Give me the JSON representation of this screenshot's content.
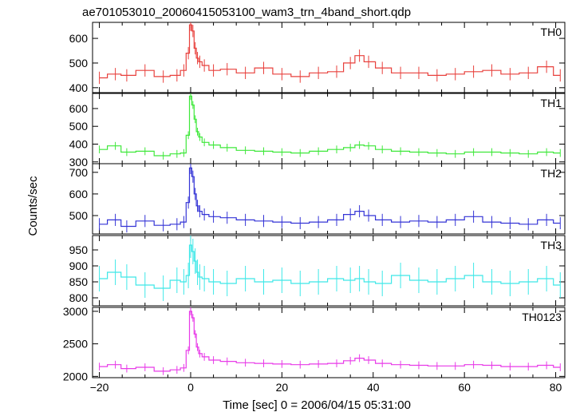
{
  "chart_data": {
    "type": "line",
    "title": "ae701053010_20060415053100_wam3_trn_4band_short.qdp",
    "xlabel": "Time [sec] 0 = 2006/04/15 05:31:00",
    "ylabel": "Counts/sec",
    "xlim": [
      -21.5,
      82
    ],
    "x_ticks": [
      -20,
      0,
      20,
      40,
      60,
      80
    ],
    "panels": [
      {
        "name": "TH0",
        "color": "#e8403c",
        "ylim": [
          380,
          665
        ],
        "y_ticks": [
          400,
          500,
          600
        ],
        "x": [
          -20,
          -16.5,
          -14,
          -10,
          -6,
          -3,
          -1.5,
          -0.5,
          0,
          0.5,
          1,
          1.5,
          2,
          3,
          5,
          8,
          12,
          16,
          20,
          24,
          28,
          32,
          35,
          37,
          39,
          42,
          46,
          50,
          54,
          58,
          62,
          66,
          70,
          74,
          78,
          81
        ],
        "y": [
          440,
          455,
          450,
          470,
          445,
          450,
          470,
          540,
          655,
          630,
          560,
          520,
          505,
          490,
          470,
          475,
          460,
          480,
          455,
          445,
          460,
          465,
          500,
          530,
          505,
          480,
          460,
          460,
          450,
          455,
          465,
          470,
          455,
          460,
          485,
          450
        ],
        "err": 25
      },
      {
        "name": "TH1",
        "color": "#3ee83a",
        "ylim": [
          290,
          685
        ],
        "y_ticks": [
          300,
          400,
          500,
          600
        ],
        "x": [
          -20,
          -16.5,
          -14,
          -10,
          -6,
          -3,
          -1.5,
          -0.5,
          0,
          0.5,
          1,
          1.5,
          2,
          3,
          5,
          8,
          12,
          16,
          20,
          24,
          28,
          32,
          35,
          37,
          39,
          42,
          46,
          50,
          54,
          58,
          62,
          66,
          70,
          74,
          78,
          81
        ],
        "y": [
          370,
          390,
          355,
          360,
          335,
          345,
          350,
          450,
          670,
          620,
          540,
          470,
          440,
          410,
          395,
          380,
          365,
          360,
          355,
          350,
          360,
          370,
          380,
          395,
          390,
          370,
          360,
          355,
          350,
          345,
          355,
          355,
          350,
          345,
          355,
          350
        ],
        "err": 22
      },
      {
        "name": "TH2",
        "color": "#3434d6",
        "ylim": [
          415,
          740
        ],
        "y_ticks": [
          500,
          600,
          700
        ],
        "x": [
          -20,
          -16.5,
          -14,
          -10,
          -6,
          -3,
          -1.5,
          -0.5,
          0,
          0.5,
          1,
          1.5,
          2,
          3,
          5,
          8,
          12,
          16,
          20,
          24,
          28,
          32,
          35,
          37,
          39,
          42,
          46,
          50,
          54,
          58,
          62,
          66,
          70,
          74,
          78,
          81
        ],
        "y": [
          460,
          480,
          450,
          475,
          455,
          460,
          470,
          560,
          720,
          680,
          600,
          545,
          520,
          505,
          495,
          490,
          480,
          475,
          470,
          465,
          470,
          480,
          505,
          520,
          500,
          480,
          470,
          475,
          470,
          480,
          495,
          470,
          465,
          460,
          480,
          465
        ],
        "err": 28
      },
      {
        "name": "TH3",
        "color": "#3ee8e8",
        "ylim": [
          775,
          995
        ],
        "y_ticks": [
          800,
          850,
          900,
          950
        ],
        "x": [
          -20,
          -16.5,
          -14,
          -10,
          -6,
          -3,
          -1.5,
          -0.5,
          0,
          0.5,
          1,
          1.5,
          2,
          3,
          5,
          8,
          12,
          16,
          20,
          24,
          28,
          32,
          35,
          37,
          39,
          42,
          46,
          50,
          54,
          58,
          62,
          66,
          70,
          74,
          78,
          81
        ],
        "y": [
          860,
          880,
          865,
          840,
          830,
          855,
          850,
          870,
          965,
          945,
          915,
          880,
          865,
          860,
          850,
          845,
          860,
          850,
          855,
          845,
          850,
          860,
          855,
          860,
          850,
          845,
          870,
          855,
          850,
          860,
          870,
          850,
          845,
          850,
          860,
          840
        ],
        "err": 40
      },
      {
        "name": "TH0123",
        "color": "#e83ae8",
        "ylim": [
          1980,
          3060
        ],
        "y_ticks": [
          2000,
          2500,
          3000
        ],
        "x": [
          -20,
          -16.5,
          -14,
          -10,
          -6,
          -3,
          -1.5,
          -0.5,
          0,
          0.5,
          1,
          1.5,
          2,
          3,
          5,
          8,
          12,
          16,
          20,
          24,
          28,
          32,
          35,
          37,
          39,
          42,
          46,
          50,
          54,
          58,
          62,
          66,
          70,
          74,
          78,
          81
        ],
        "y": [
          2150,
          2180,
          2120,
          2140,
          2080,
          2100,
          2130,
          2400,
          3000,
          2900,
          2650,
          2450,
          2350,
          2300,
          2250,
          2230,
          2210,
          2200,
          2190,
          2180,
          2190,
          2200,
          2240,
          2280,
          2250,
          2200,
          2180,
          2170,
          2160,
          2160,
          2180,
          2170,
          2150,
          2150,
          2170,
          2140
        ],
        "err": 60
      }
    ]
  }
}
